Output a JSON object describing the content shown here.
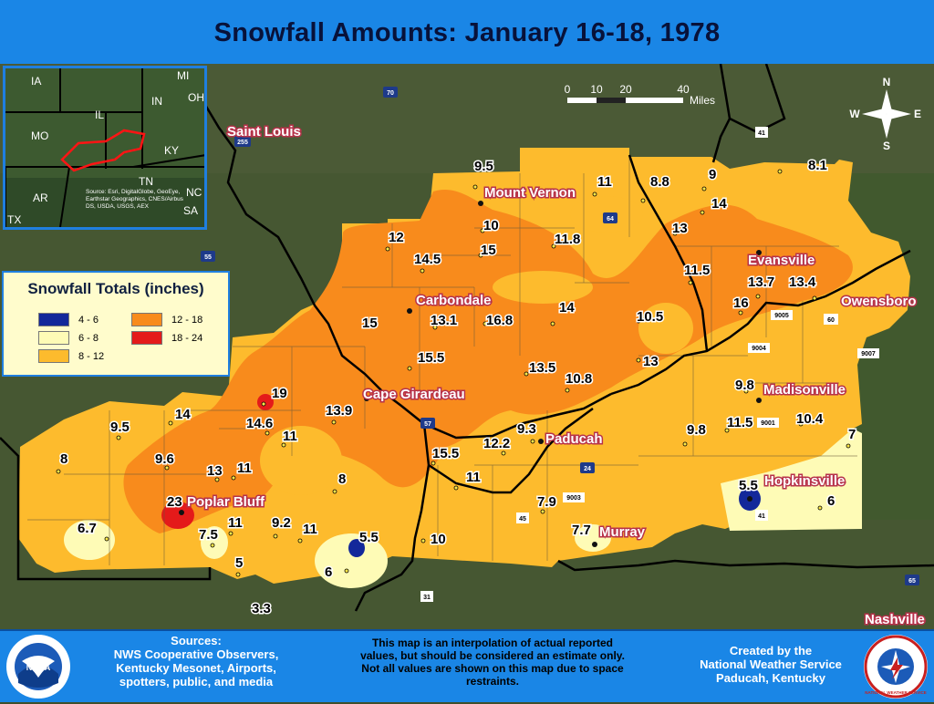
{
  "title": "Snowfall Amounts: January 16-18, 1978",
  "colors": {
    "range_4_6": "#13289a",
    "range_6_8": "#fefbb6",
    "range_8_12": "#fdbb2d",
    "range_12_18": "#f88b1c",
    "range_18_24": "#e41a1a",
    "banner": "#1a86e6",
    "city_label_outline": "#b7324a"
  },
  "legend": {
    "title": "Snowfall Totals (inches)",
    "items": [
      {
        "label": "4 - 6",
        "color": "#13289a"
      },
      {
        "label": "12 - 18",
        "color": "#f88b1c"
      },
      {
        "label": "6 - 8",
        "color": "#fefbb6"
      },
      {
        "label": "18 - 24",
        "color": "#e41a1a"
      },
      {
        "label": "8 - 12",
        "color": "#fdbb2d"
      }
    ]
  },
  "scale_bar": {
    "ticks": [
      "0",
      "10",
      "20",
      "40"
    ],
    "unit": "Miles"
  },
  "compass": {
    "n": "N",
    "s": "S",
    "e": "E",
    "w": "W"
  },
  "inset": {
    "states": [
      "IA",
      "MI",
      "IN",
      "OH",
      "IL",
      "MO",
      "KY",
      "TN",
      "AR",
      "NC",
      "SA",
      "TX"
    ],
    "credits": "Source: Esri, DigitalGlobe, GeoEye, Earthstar Geographics, CNES/Airbus DS, USDA, USGS, AEX"
  },
  "cities": [
    "Saint Louis",
    "Mount Vernon",
    "Carbondale",
    "Evansville",
    "Owensboro",
    "Cape Girardeau",
    "Paducah",
    "Madisonville",
    "Hopkinsville",
    "Poplar Bluff",
    "Murray",
    "Nashville"
  ],
  "observations": [
    "9.5",
    "11",
    "8.8",
    "9",
    "8.1",
    "14",
    "10",
    "15",
    "13",
    "12",
    "14.5",
    "11.8",
    "11.5",
    "13.7",
    "13.4",
    "15",
    "13.1",
    "16.8",
    "14",
    "16",
    "10.5",
    "15.5",
    "13.5",
    "13",
    "10.8",
    "19",
    "9.8",
    "13.9",
    "14",
    "14.6",
    "9.3",
    "9.5",
    "11",
    "10.4",
    "12.2",
    "15.5",
    "9.8",
    "11.5",
    "7",
    "8",
    "9.6",
    "13",
    "11",
    "11",
    "8",
    "23",
    "7.9",
    "5.5",
    "6",
    "6.7",
    "7.5",
    "11",
    "9.2",
    "11",
    "5.5",
    "10",
    "7.7",
    "6",
    "5",
    "3.3"
  ],
  "highways": [
    "70",
    "41",
    "255",
    "64",
    "55",
    "57",
    "24",
    "45",
    "9003",
    "31",
    "65",
    "9004",
    "9005",
    "9001",
    "9007",
    "60"
  ],
  "footer": {
    "sources_title": "Sources:",
    "sources_lines": [
      "NWS Cooperative Observers,",
      "Kentucky Mesonet, Airports,",
      "spotters, public, and media"
    ],
    "disclaimer_lines": [
      "This map is an interpolation of actual reported",
      "values, but should be considered an estimate only.",
      "Not all values are shown on this map due to space",
      "restraints."
    ],
    "credit_lines": [
      "Created by the",
      "National Weather Service",
      "Paducah, Kentucky"
    ],
    "noaa_logo_text": "NOAA",
    "nws_seal_text": "NATIONAL WEATHER SERVICE"
  }
}
